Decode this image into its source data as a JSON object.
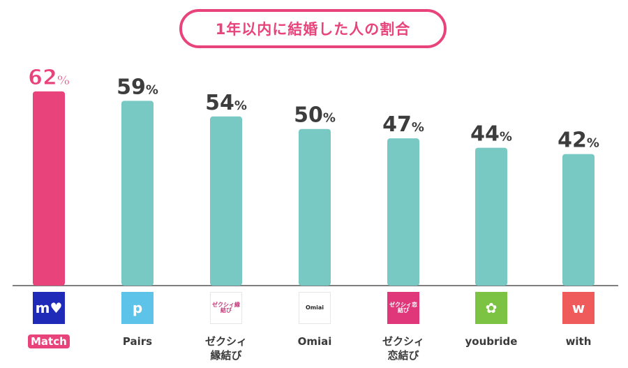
{
  "title": "1年以内に結婚した人の割合",
  "colors": {
    "accent": "#e8437a",
    "bar": "#78c9c4",
    "value_text": "#3d3d3d",
    "axis": "#555555"
  },
  "chart_data": {
    "type": "bar",
    "title": "1年以内に結婚した人の割合",
    "categories": [
      "Match",
      "Pairs",
      "ゼクシィ\n縁結び",
      "Omiai",
      "ゼクシィ\n恋結び",
      "youbride",
      "with"
    ],
    "values": [
      62,
      59,
      54,
      50,
      47,
      44,
      42
    ],
    "value_suffix": "%",
    "highlight_index": 0,
    "ylim": [
      0,
      70
    ],
    "grid": false,
    "legend": "none"
  },
  "logos": [
    {
      "icon": "match-logo-icon",
      "text": "m♥",
      "bg": "#1f2bb8",
      "fg": "#ffffff"
    },
    {
      "icon": "pairs-logo-icon",
      "text": "p",
      "bg": "#5ec3e8",
      "fg": "#ffffff"
    },
    {
      "icon": "zexy-enmusubi-logo-icon",
      "text": "ゼクシィ縁結び",
      "bg": "#ffffff",
      "fg": "#c23a7a"
    },
    {
      "icon": "omiai-logo-icon",
      "text": "Omiai",
      "bg": "#ffffff",
      "fg": "#222222"
    },
    {
      "icon": "zexy-koimusubi-logo-icon",
      "text": "ゼクシィ恋結び",
      "bg": "#e0367a",
      "fg": "#ffffff"
    },
    {
      "icon": "youbride-logo-icon",
      "text": "✿",
      "bg": "#7cc243",
      "fg": "#ffffff"
    },
    {
      "icon": "with-logo-icon",
      "text": "w",
      "bg": "#ef5a5a",
      "fg": "#ffffff"
    }
  ]
}
